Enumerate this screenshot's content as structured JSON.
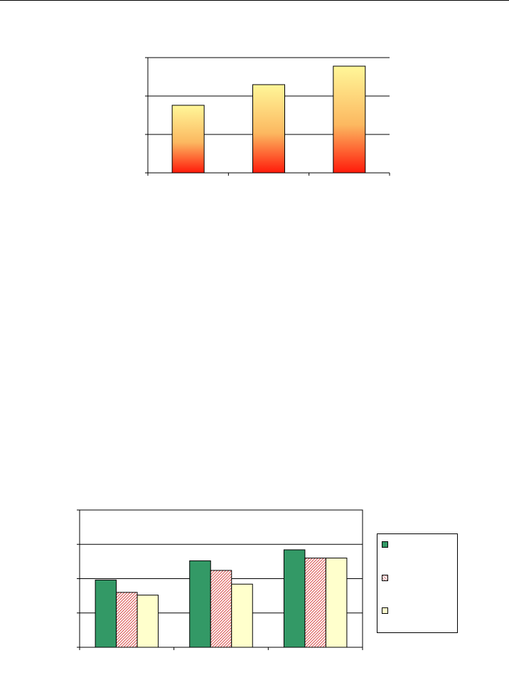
{
  "chart_data": [
    {
      "type": "bar",
      "categories": [
        "",
        "",
        ""
      ],
      "values": [
        95,
        124,
        150
      ],
      "ylim": [
        0,
        162
      ],
      "gridlines": [
        0,
        54,
        108,
        162
      ],
      "grid": true,
      "title": "",
      "xlabel": "",
      "ylabel": "",
      "bar_fill": {
        "top": "#fff799",
        "middle": "#fcb860",
        "bottom": "#ff1a0a"
      }
    },
    {
      "type": "bar",
      "categories": [
        "",
        "",
        ""
      ],
      "series": [
        {
          "values": [
            49,
            63,
            71
          ],
          "color": "#339966",
          "pattern": "solid"
        },
        {
          "values": [
            40,
            56,
            65
          ],
          "color": "#e8a0a0",
          "pattern": "hatch"
        },
        {
          "values": [
            38,
            46,
            65
          ],
          "color": "#ffffcc",
          "pattern": "solid"
        }
      ],
      "ylim": [
        0,
        100
      ],
      "gridlines": [
        0,
        25,
        50,
        75
      ],
      "grid": true,
      "legend": {
        "position": "right",
        "entries": [
          "",
          "",
          ""
        ]
      },
      "title": "",
      "xlabel": "",
      "ylabel": ""
    }
  ]
}
